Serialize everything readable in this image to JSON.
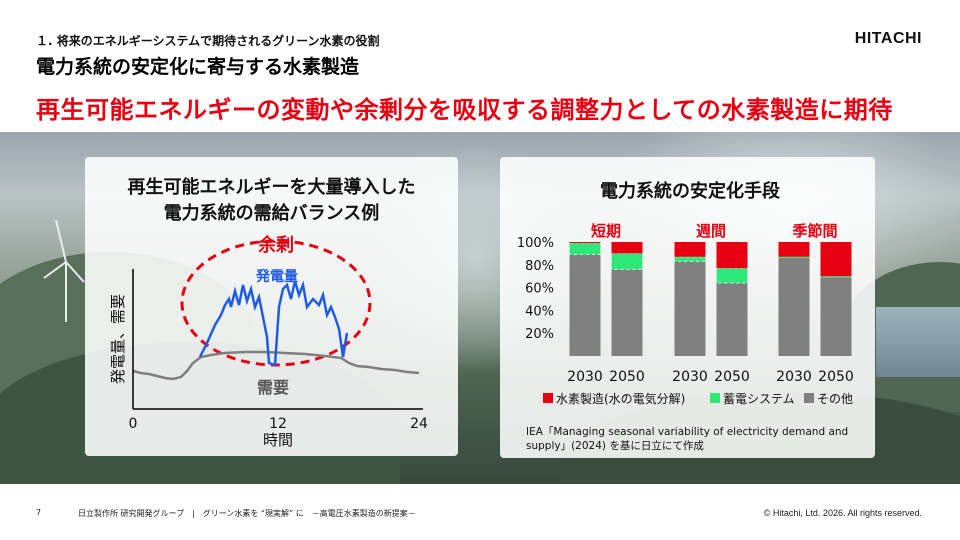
{
  "header": {
    "section_title": "１. 将来のエネルギーシステムで期待されるグリーン水素の役割",
    "subtitle": "電力系統の安定化に寄与する水素製造",
    "headline": "再生可能エネルギーの変動や余剰分を吸収する調整力としての水素製造に期待",
    "logo": "HITACHI"
  },
  "left_panel": {
    "title_line1": "再生可能エネルギーを大量導入した",
    "title_line2": "電力系統の需給バランス例",
    "surplus_label": "余剰",
    "generation_label": "発電量",
    "demand_label": "需要",
    "y_axis_label": "発電量、需要",
    "x_axis_label": "時間",
    "x_ticks": [
      "0",
      "12",
      "24"
    ]
  },
  "right_panel": {
    "title": "電力系統の安定化手段",
    "source_note_line1": "IEA「Managing seasonal variability of electricity demand and",
    "source_note_line2": "supply」(2024) を基に日立にて作成"
  },
  "chart_data": {
    "type": "bar",
    "stacked": true,
    "title": "電力系統の安定化手段",
    "groups": [
      "短期",
      "週間",
      "季節間"
    ],
    "categories": [
      "2030",
      "2050",
      "2030",
      "2050",
      "2030",
      "2050"
    ],
    "y_ticks": [
      "20%",
      "40%",
      "60%",
      "80%",
      "100%"
    ],
    "ylim": [
      0,
      100
    ],
    "colors": {
      "hydrogen": "#e60012",
      "storage": "#2ee87a",
      "other": "#808080"
    },
    "series": [
      {
        "name": "その他",
        "key": "other",
        "values": [
          89,
          76,
          83,
          64,
          86,
          69
        ]
      },
      {
        "name": "蓄電システム",
        "key": "storage",
        "values": [
          10,
          14,
          4,
          13,
          1,
          1
        ]
      },
      {
        "name": "水素製造(水の電気分解)",
        "key": "hydrogen",
        "values": [
          1,
          10,
          13,
          23,
          13,
          30
        ]
      }
    ],
    "legend": [
      "水素製造(水の電気分解)",
      "蓄電システム",
      "その他"
    ]
  },
  "footer": {
    "page_number": "7",
    "text": "日立製作所 研究開発グループ　|　グリーン水素を “現実解” に　－高電圧水素製造の新提案－",
    "copyright": "© Hitachi, Ltd. 2026. All rights reserved."
  }
}
